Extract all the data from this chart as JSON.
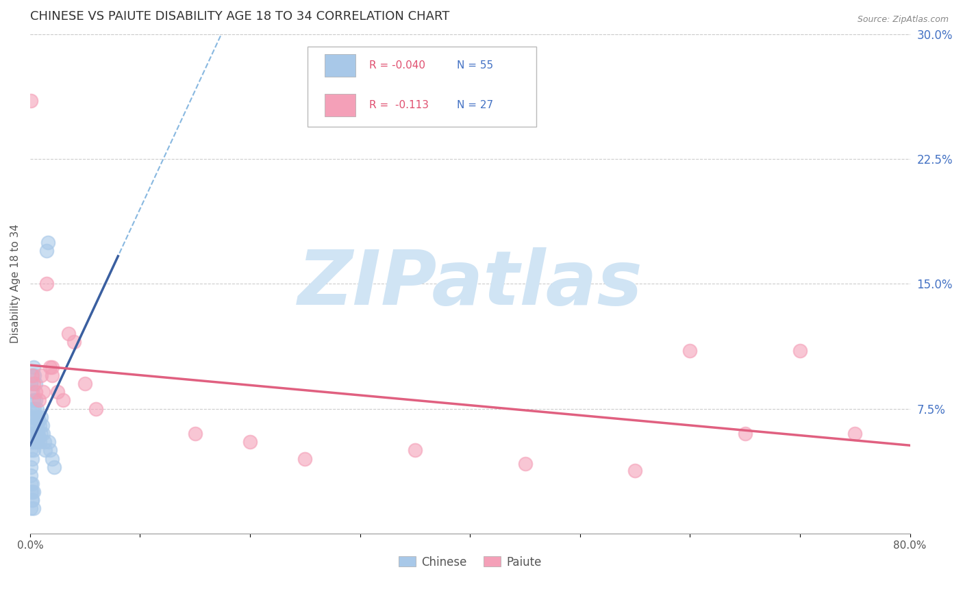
{
  "title": "CHINESE VS PAIUTE DISABILITY AGE 18 TO 34 CORRELATION CHART",
  "source": "Source: ZipAtlas.com",
  "ylabel": "Disability Age 18 to 34",
  "xlim": [
    0.0,
    0.8
  ],
  "ylim": [
    0.0,
    0.3
  ],
  "xticks": [
    0.0,
    0.1,
    0.2,
    0.3,
    0.4,
    0.5,
    0.6,
    0.7,
    0.8
  ],
  "yticks_right": [
    0.075,
    0.15,
    0.225,
    0.3
  ],
  "ytick_labels_right": [
    "7.5%",
    "15.0%",
    "22.5%",
    "30.0%"
  ],
  "xtick_labels": [
    "0.0%",
    "",
    "",
    "",
    "",
    "",
    "",
    "",
    "80.0%"
  ],
  "chinese_R": -0.04,
  "chinese_N": 55,
  "paiute_R": -0.113,
  "paiute_N": 27,
  "chinese_color": "#a8c8e8",
  "paiute_color": "#f4a0b8",
  "chinese_line_color": "#3a5fa0",
  "paiute_line_color": "#e06080",
  "dashed_line_color": "#88b8e0",
  "watermark": "ZIPatlas",
  "watermark_color": "#d0e4f4",
  "background_color": "#ffffff",
  "title_color": "#333333",
  "source_color": "#888888",
  "legend_label_color": "#333333",
  "legend_R_color": "#e05070",
  "legend_N_color": "#4472c4",
  "grid_color": "#cccccc",
  "chinese_x": [
    0.001,
    0.001,
    0.001,
    0.001,
    0.002,
    0.002,
    0.002,
    0.002,
    0.002,
    0.003,
    0.003,
    0.003,
    0.003,
    0.004,
    0.004,
    0.004,
    0.005,
    0.005,
    0.005,
    0.006,
    0.006,
    0.006,
    0.007,
    0.007,
    0.008,
    0.008,
    0.009,
    0.009,
    0.01,
    0.01,
    0.011,
    0.012,
    0.013,
    0.014,
    0.015,
    0.016,
    0.017,
    0.018,
    0.02,
    0.022,
    0.001,
    0.002,
    0.003,
    0.004,
    0.005,
    0.001,
    0.002,
    0.003,
    0.001,
    0.002,
    0.001,
    0.002,
    0.003,
    0.002,
    0.001
  ],
  "chinese_y": [
    0.07,
    0.06,
    0.05,
    0.04,
    0.085,
    0.075,
    0.065,
    0.055,
    0.045,
    0.08,
    0.07,
    0.06,
    0.05,
    0.075,
    0.065,
    0.055,
    0.08,
    0.07,
    0.06,
    0.075,
    0.065,
    0.055,
    0.07,
    0.06,
    0.068,
    0.058,
    0.065,
    0.055,
    0.07,
    0.06,
    0.065,
    0.06,
    0.055,
    0.05,
    0.17,
    0.175,
    0.055,
    0.05,
    0.045,
    0.04,
    0.09,
    0.095,
    0.1,
    0.095,
    0.09,
    0.025,
    0.02,
    0.015,
    0.03,
    0.025,
    0.035,
    0.03,
    0.025,
    0.02,
    0.015
  ],
  "paiute_x": [
    0.001,
    0.002,
    0.003,
    0.005,
    0.008,
    0.01,
    0.012,
    0.015,
    0.018,
    0.02,
    0.025,
    0.03,
    0.035,
    0.04,
    0.05,
    0.06,
    0.15,
    0.2,
    0.25,
    0.35,
    0.45,
    0.55,
    0.6,
    0.65,
    0.7,
    0.75,
    0.02
  ],
  "paiute_y": [
    0.26,
    0.095,
    0.09,
    0.085,
    0.08,
    0.095,
    0.085,
    0.15,
    0.1,
    0.095,
    0.085,
    0.08,
    0.12,
    0.115,
    0.09,
    0.075,
    0.06,
    0.055,
    0.045,
    0.05,
    0.042,
    0.038,
    0.11,
    0.06,
    0.11,
    0.06,
    0.1
  ]
}
